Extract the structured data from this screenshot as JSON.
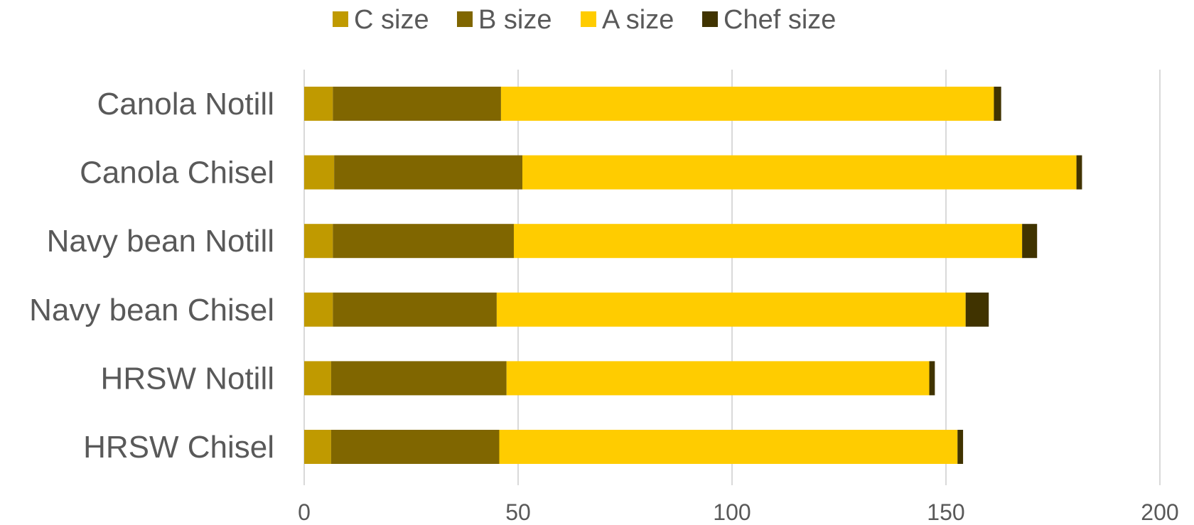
{
  "chart_data": {
    "type": "bar",
    "orientation": "horizontal",
    "stacked": true,
    "categories": [
      "Canola Notill",
      "Canola Chisel",
      "Navy bean Notill",
      "Navy bean Chisel",
      "HRSW Notill",
      "HRSW Chisel"
    ],
    "series": [
      {
        "name": "C size",
        "color": "#C09A00",
        "values": [
          6.7,
          7.0,
          6.7,
          6.7,
          6.3,
          6.3
        ]
      },
      {
        "name": "B size",
        "color": "#806600",
        "values": [
          39.3,
          44.0,
          42.3,
          38.3,
          41.0,
          39.3
        ]
      },
      {
        "name": "A size",
        "color": "#FFCC00",
        "values": [
          115.2,
          129.5,
          118.8,
          109.6,
          98.8,
          107.1
        ]
      },
      {
        "name": "Chef size",
        "color": "#403300",
        "values": [
          1.7,
          1.3,
          3.5,
          5.4,
          1.3,
          1.3
        ]
      }
    ],
    "xlim": [
      0,
      200
    ],
    "xticks": [
      "0",
      "50",
      "100",
      "150",
      "200"
    ],
    "grid": true,
    "legend": "top-center"
  }
}
